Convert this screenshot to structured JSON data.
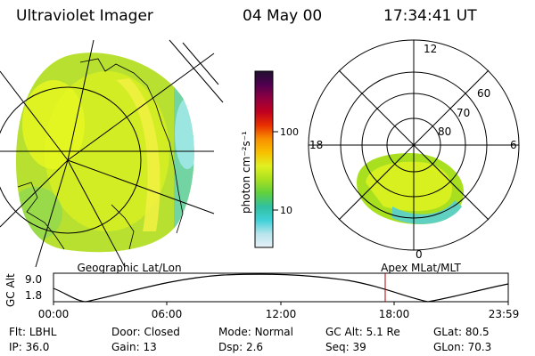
{
  "header": {
    "instrument": "Ultraviolet Imager",
    "date": "04 May 00",
    "time": "17:34:41 UT"
  },
  "panels": {
    "left_label": "Geographic Lat/Lon",
    "right_label": "Apex MLat/MLT"
  },
  "colorbar": {
    "label": "photon cm⁻²s⁻¹",
    "scale": "log",
    "ticks": [
      "100",
      "10"
    ],
    "colors": [
      "#e8f0f8",
      "#b8e4ec",
      "#40d0d8",
      "#30c0a0",
      "#60d040",
      "#a8e020",
      "#e0f020",
      "#f8c000",
      "#f89000",
      "#e83000",
      "#c00020",
      "#900040",
      "#500050",
      "#201030"
    ]
  },
  "polar": {
    "mlt_labels": [
      "12",
      "18",
      "6",
      "0"
    ],
    "mlat_labels": [
      "60",
      "70",
      "80"
    ]
  },
  "altitude_plot": {
    "ylabel": "GC Alt",
    "yticks": [
      "9.0",
      "1.8"
    ],
    "xticks": [
      "00:00",
      "06:00",
      "12:00",
      "18:00",
      "23:59"
    ],
    "line_color": "#000000",
    "marker_color": "#b00000"
  },
  "info": {
    "row1": [
      {
        "label": "Flt:",
        "value": "LBHL"
      },
      {
        "label": "Door:",
        "value": "Closed"
      },
      {
        "label": "Mode:",
        "value": "Normal"
      },
      {
        "label": "GC Alt:",
        "value": "5.1 Re"
      },
      {
        "label": "GLat:",
        "value": "80.5"
      }
    ],
    "row2": [
      {
        "label": "IP:",
        "value": "36.0"
      },
      {
        "label": "Gain:",
        "value": "13"
      },
      {
        "label": "Dsp:",
        "value": "2.6"
      },
      {
        "label": "Seq:",
        "value": "39"
      },
      {
        "label": "GLon:",
        "value": "70.3"
      }
    ]
  }
}
